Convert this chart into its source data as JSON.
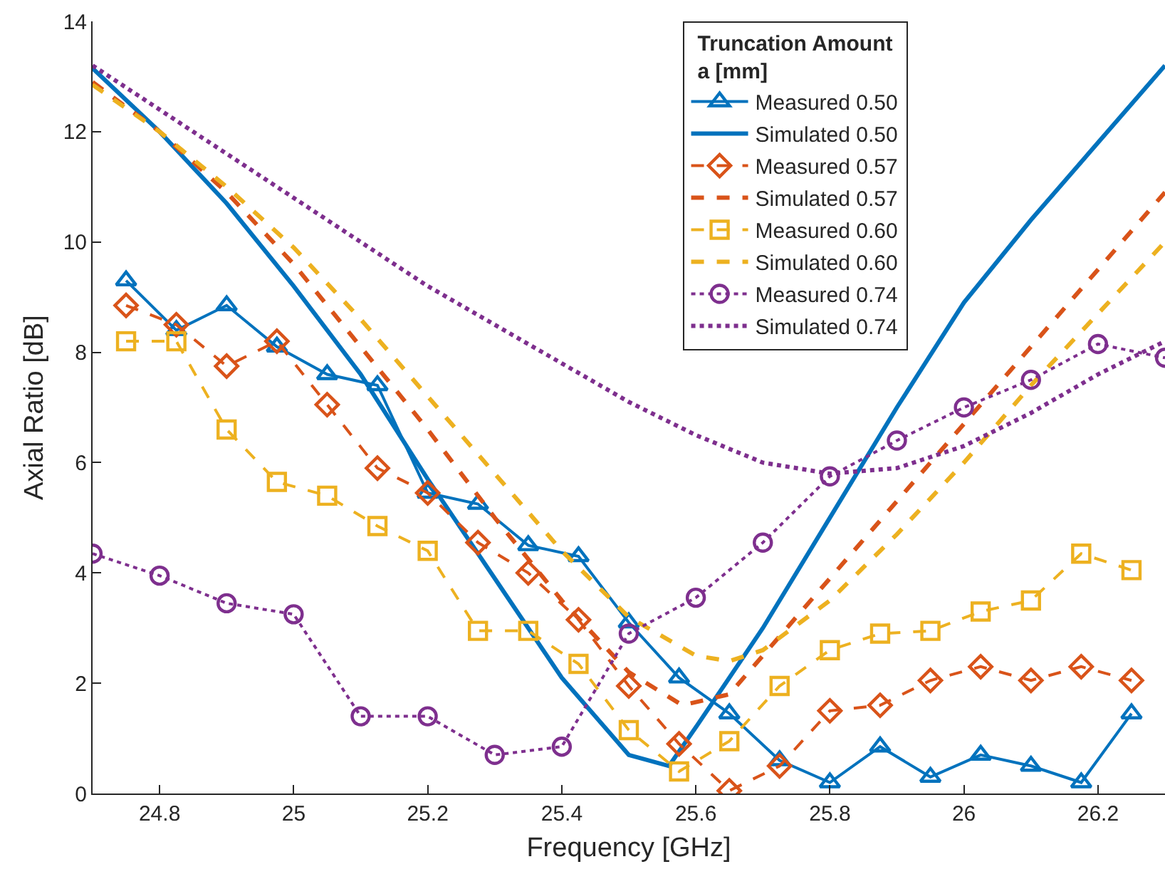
{
  "chart_data": {
    "type": "line",
    "xlabel": "Frequency [GHz]",
    "ylabel": "Axial Ratio [dB]",
    "legend_title": "Truncation Amount\na [mm]",
    "legend": "top right",
    "grid": false,
    "xlim": [
      24.7,
      26.3
    ],
    "xticks": [
      24.8,
      25,
      25.2,
      25.4,
      25.6,
      25.8,
      26,
      26.2
    ],
    "ylim": [
      0,
      14
    ],
    "yticks": [
      0,
      2,
      4,
      6,
      8,
      10,
      12,
      14
    ],
    "series": [
      {
        "name": "Measured 0.50",
        "color": "#0072bd",
        "marker": "triangle",
        "line_style": "solid",
        "x": [
          24.75,
          24.825,
          24.9,
          24.975,
          25.05,
          25.125,
          25.2,
          25.275,
          25.35,
          25.425,
          25.5,
          25.575,
          25.65,
          25.725,
          25.8,
          25.875,
          25.95,
          26.025,
          26.1,
          26.175,
          26.25
        ],
        "values": [
          9.3,
          8.4,
          8.85,
          8.1,
          7.6,
          7.4,
          5.45,
          5.25,
          4.5,
          4.3,
          3.1,
          2.1,
          1.45,
          0.6,
          0.2,
          0.85,
          0.3,
          0.7,
          0.5,
          0.2,
          1.45
        ]
      },
      {
        "name": "Simulated 0.50",
        "color": "#0072bd",
        "marker": "none",
        "line_style": "solid",
        "x": [
          24.7,
          24.8,
          24.9,
          25.0,
          25.1,
          25.2,
          25.3,
          25.4,
          25.5,
          25.56,
          25.6,
          25.7,
          25.8,
          25.9,
          26.0,
          26.1,
          26.2,
          26.3
        ],
        "values": [
          13.15,
          12.0,
          10.7,
          9.2,
          7.6,
          5.7,
          3.9,
          2.1,
          0.7,
          0.5,
          1.2,
          3.0,
          5.0,
          7.0,
          8.9,
          10.4,
          11.8,
          13.2
        ]
      },
      {
        "name": "Measured 0.57",
        "color": "#d95319",
        "marker": "diamond",
        "line_style": "dashed",
        "x": [
          24.75,
          24.825,
          24.9,
          24.975,
          25.05,
          25.125,
          25.2,
          25.275,
          25.35,
          25.425,
          25.5,
          25.575,
          25.65,
          25.725,
          25.8,
          25.875,
          25.95,
          26.025,
          26.1,
          26.175,
          26.25
        ],
        "values": [
          8.85,
          8.5,
          7.75,
          8.2,
          7.05,
          5.9,
          5.45,
          4.55,
          4.0,
          3.15,
          1.95,
          0.9,
          0.05,
          0.5,
          1.5,
          1.6,
          2.05,
          2.3,
          2.05,
          2.3,
          2.05
        ]
      },
      {
        "name": "Simulated 0.57",
        "color": "#d95319",
        "marker": "none",
        "line_style": "dashed",
        "x": [
          24.7,
          24.8,
          24.9,
          25.0,
          25.1,
          25.2,
          25.3,
          25.4,
          25.5,
          25.58,
          25.65,
          25.7,
          25.8,
          25.9,
          26.0,
          26.1,
          26.2,
          26.3
        ],
        "values": [
          12.9,
          12.0,
          10.9,
          9.6,
          8.1,
          6.6,
          5.0,
          3.5,
          2.2,
          1.6,
          1.8,
          2.5,
          3.9,
          5.3,
          6.7,
          8.1,
          9.5,
          10.9
        ]
      },
      {
        "name": "Measured 0.60",
        "color": "#edb120",
        "marker": "square",
        "line_style": "dashed",
        "x": [
          24.75,
          24.825,
          24.9,
          24.975,
          25.05,
          25.125,
          25.2,
          25.275,
          25.35,
          25.425,
          25.5,
          25.575,
          25.65,
          25.725,
          25.8,
          25.875,
          25.95,
          26.025,
          26.1,
          26.175,
          26.25
        ],
        "values": [
          8.2,
          8.2,
          6.6,
          5.65,
          5.4,
          4.85,
          4.4,
          2.95,
          2.95,
          2.35,
          1.15,
          0.4,
          0.95,
          1.95,
          2.6,
          2.9,
          2.95,
          3.3,
          3.5,
          4.35,
          4.05
        ]
      },
      {
        "name": "Simulated 0.60",
        "color": "#edb120",
        "marker": "none",
        "line_style": "dashed",
        "x": [
          24.7,
          24.8,
          24.9,
          25.0,
          25.1,
          25.2,
          25.3,
          25.4,
          25.5,
          25.6,
          25.65,
          25.7,
          25.8,
          25.9,
          26.0,
          26.1,
          26.2,
          26.3
        ],
        "values": [
          12.85,
          12.0,
          11.0,
          9.9,
          8.6,
          7.2,
          5.8,
          4.4,
          3.2,
          2.5,
          2.4,
          2.6,
          3.5,
          4.7,
          6.0,
          7.4,
          8.7,
          10.0
        ]
      },
      {
        "name": "Measured 0.74",
        "color": "#7e2f8e",
        "marker": "circle",
        "line_style": "dotted",
        "x": [
          24.7,
          24.8,
          24.9,
          25.0,
          25.1,
          25.2,
          25.3,
          25.4,
          25.5,
          25.6,
          25.7,
          25.8,
          25.9,
          26.0,
          26.1,
          26.2,
          26.3
        ],
        "values": [
          4.35,
          3.95,
          3.45,
          3.25,
          1.4,
          1.4,
          0.7,
          0.85,
          2.9,
          3.55,
          4.55,
          5.75,
          6.4,
          7.0,
          7.5,
          8.15,
          7.9
        ]
      },
      {
        "name": "Simulated 0.74",
        "color": "#7e2f8e",
        "marker": "none",
        "line_style": "dotted",
        "x": [
          24.7,
          24.8,
          24.9,
          25.0,
          25.1,
          25.2,
          25.3,
          25.4,
          25.5,
          25.6,
          25.7,
          25.8,
          25.9,
          26.0,
          26.1,
          26.2,
          26.3
        ],
        "values": [
          13.2,
          12.4,
          11.6,
          10.8,
          10.0,
          9.2,
          8.5,
          7.8,
          7.1,
          6.5,
          6.0,
          5.8,
          5.9,
          6.3,
          6.9,
          7.6,
          8.2
        ]
      }
    ]
  }
}
